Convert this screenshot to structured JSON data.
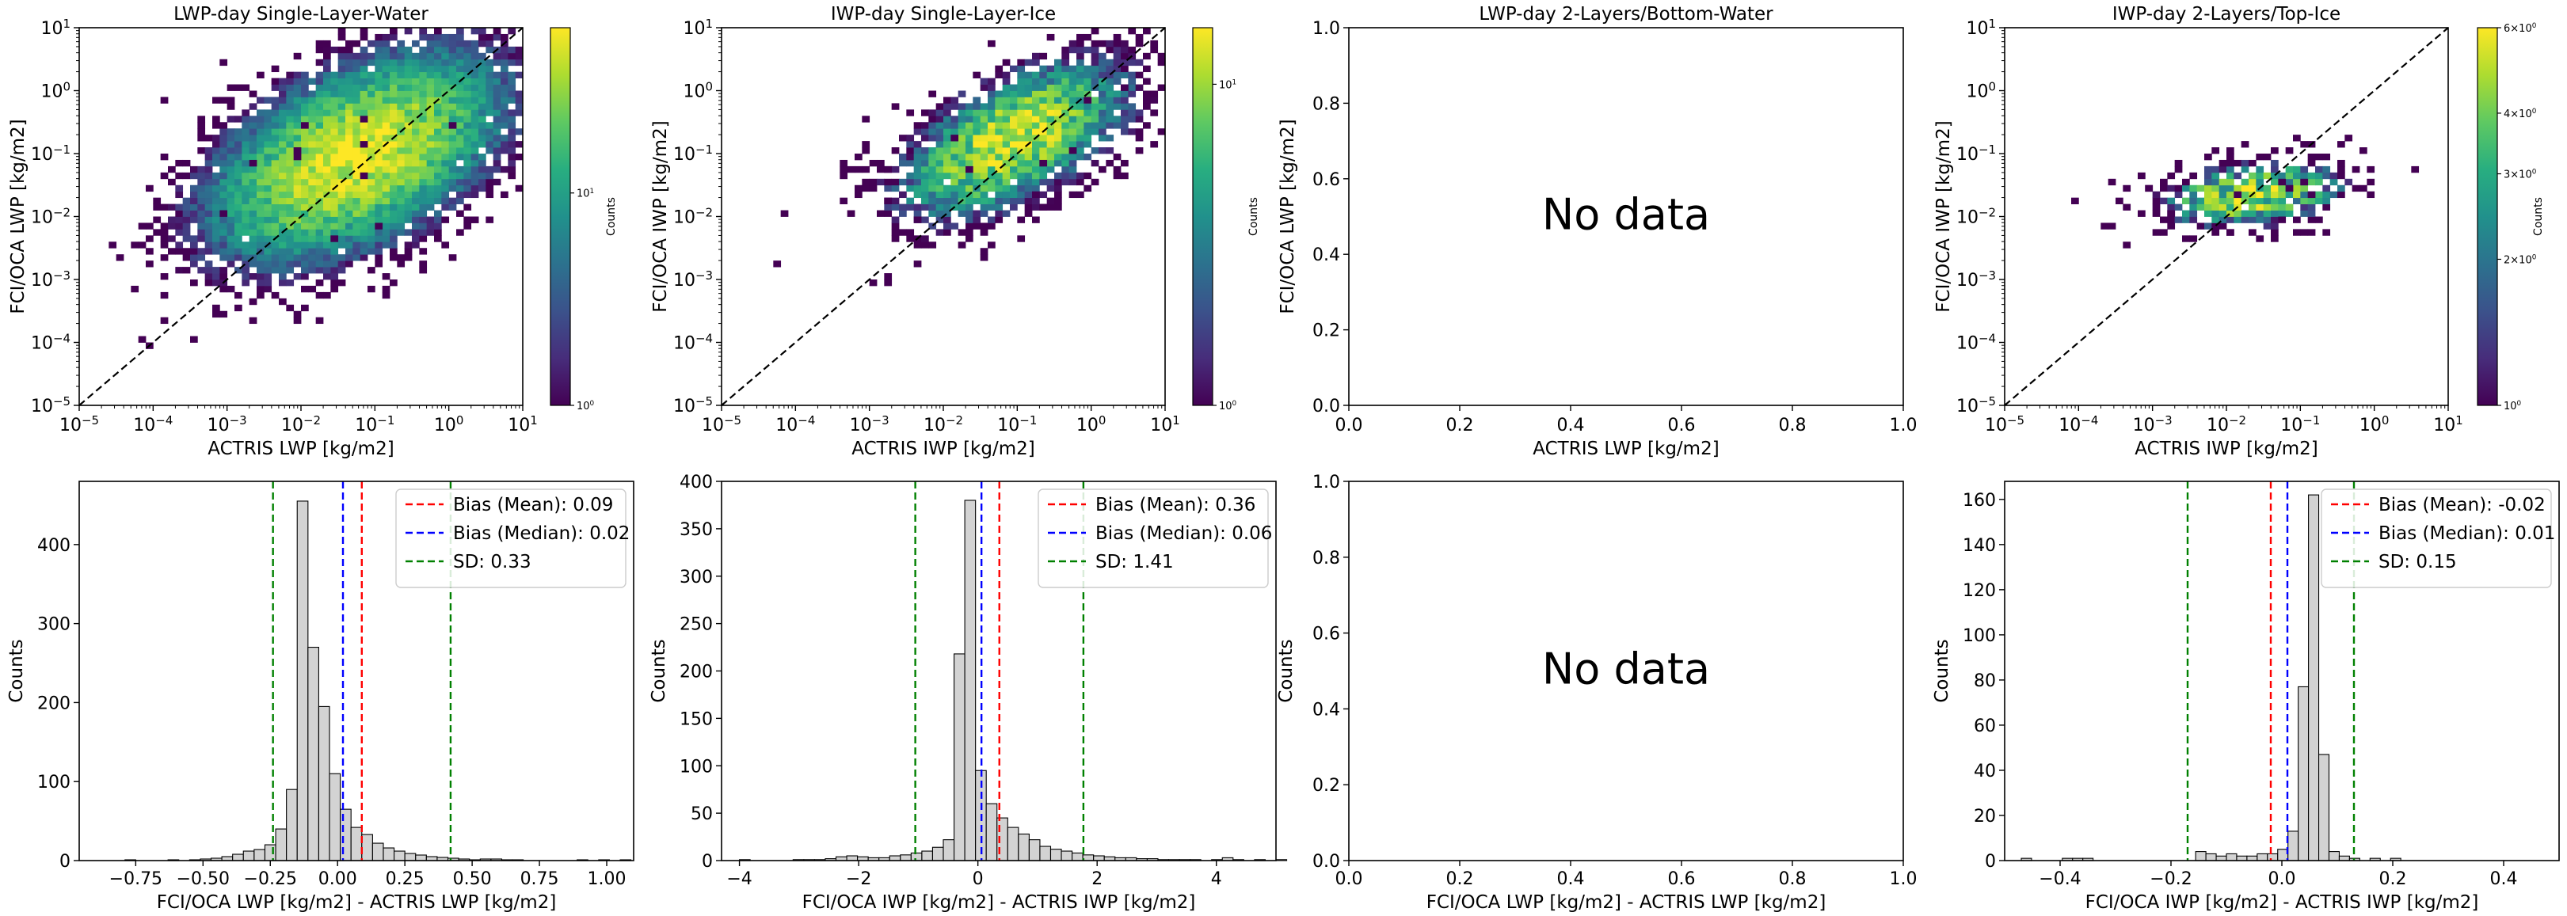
{
  "colorbar_label": "Counts",
  "no_data_text": "No data",
  "chart_data": [
    {
      "type": "heatmap",
      "title": "LWP-day Single-Layer-Water",
      "xlabel": "ACTRIS LWP [kg/m2]",
      "ylabel": "FCI/OCA LWP [kg/m2]",
      "xscale": "log",
      "yscale": "log",
      "xlim": [
        1e-05,
        10
      ],
      "ylim": [
        1e-05,
        10
      ],
      "xticks": [
        "10^-5",
        "10^-4",
        "10^-3",
        "10^-2",
        "10^-1",
        "10^0",
        "10^1"
      ],
      "yticks": [
        "10^-5",
        "10^-4",
        "10^-3",
        "10^-2",
        "10^-1",
        "10^0",
        "10^1"
      ],
      "one_to_one_line": true,
      "colormap": "viridis",
      "colorbar": {
        "label": "Counts",
        "scale": "log",
        "min": 1,
        "max": 60,
        "ticks": [
          "10^0",
          "10^1"
        ]
      },
      "density": {
        "center_x": 0.05,
        "center_y": 0.08,
        "spread_x_decades": 0.9,
        "spread_y_decades": 0.75,
        "correlation": 0.5,
        "peak_count": 60
      }
    },
    {
      "type": "heatmap",
      "title": "IWP-day Single-Layer-Ice",
      "xlabel": "ACTRIS IWP [kg/m2]",
      "ylabel": "FCI/OCA IWP [kg/m2]",
      "xscale": "log",
      "yscale": "log",
      "xlim": [
        1e-05,
        10
      ],
      "ylim": [
        1e-05,
        10
      ],
      "xticks": [
        "10^-5",
        "10^-4",
        "10^-3",
        "10^-2",
        "10^-1",
        "10^0",
        "10^1"
      ],
      "yticks": [
        "10^-5",
        "10^-4",
        "10^-3",
        "10^-2",
        "10^-1",
        "10^0",
        "10^1"
      ],
      "one_to_one_line": true,
      "colormap": "viridis",
      "colorbar": {
        "label": "Counts",
        "scale": "log",
        "min": 1,
        "max": 15,
        "ticks": [
          "10^0",
          "10^1"
        ]
      },
      "density": {
        "center_x": 0.08,
        "center_y": 0.15,
        "spread_x_decades": 0.8,
        "spread_y_decades": 0.65,
        "correlation": 0.6,
        "peak_count": 15
      }
    },
    {
      "type": "heatmap",
      "title": "LWP-day 2-Layers/Bottom-Water",
      "xlabel": "ACTRIS LWP [kg/m2]",
      "ylabel": "FCI/OCA LWP [kg/m2]",
      "xlim": [
        0,
        1
      ],
      "ylim": [
        0,
        1
      ],
      "xticks": [
        "0.0",
        "0.2",
        "0.4",
        "0.6",
        "0.8",
        "1.0"
      ],
      "yticks": [
        "0.0",
        "0.2",
        "0.4",
        "0.6",
        "0.8",
        "1.0"
      ],
      "annotation": "No data"
    },
    {
      "type": "heatmap",
      "title": "IWP-day 2-Layers/Top-Ice",
      "xlabel": "ACTRIS IWP [kg/m2]",
      "ylabel": "FCI/OCA IWP [kg/m2]",
      "xscale": "log",
      "yscale": "log",
      "xlim": [
        1e-05,
        10
      ],
      "ylim": [
        1e-05,
        10
      ],
      "xticks": [
        "10^-5",
        "10^-4",
        "10^-3",
        "10^-2",
        "10^-1",
        "10^0",
        "10^1"
      ],
      "yticks": [
        "10^-5",
        "10^-4",
        "10^-3",
        "10^-2",
        "10^-1",
        "10^0",
        "10^1"
      ],
      "one_to_one_line": true,
      "colormap": "viridis",
      "colorbar": {
        "label": "Counts",
        "scale": "log",
        "min": 1,
        "max": 6,
        "ticks": [
          "10^0",
          "2×10^0",
          "3×10^0",
          "4×10^0",
          "6×10^0"
        ]
      },
      "density": {
        "center_x": 0.02,
        "center_y": 0.02,
        "spread_x_decades": 0.75,
        "spread_y_decades": 0.3,
        "correlation": 0.3,
        "peak_count": 6
      }
    },
    {
      "type": "bar",
      "xlabel": "FCI/OCA LWP [kg/m2] - ACTRIS LWP [kg/m2]",
      "ylabel": "Counts",
      "xlim": [
        -0.96,
        1.1
      ],
      "ylim": [
        0,
        480
      ],
      "xticks": [
        -0.75,
        -0.5,
        -0.25,
        0.0,
        0.25,
        0.5,
        0.75,
        1.0
      ],
      "xtick_labels": [
        "−0.75",
        "−0.50",
        "−0.25",
        "0.00",
        "0.25",
        "0.50",
        "0.75",
        "1.00"
      ],
      "yticks": [
        0,
        100,
        200,
        300,
        400
      ],
      "bin_edges_start": -0.95,
      "bin_width": 0.04,
      "values": [
        0,
        0,
        0,
        0,
        1,
        0,
        0,
        0,
        1,
        0,
        1,
        2,
        3,
        5,
        8,
        12,
        14,
        20,
        40,
        90,
        455,
        270,
        195,
        110,
        65,
        42,
        33,
        22,
        16,
        12,
        9,
        7,
        5,
        4,
        3,
        2,
        1,
        2,
        2,
        1,
        1,
        0,
        0,
        0,
        0,
        0,
        1,
        0,
        1,
        0,
        1
      ],
      "vlines": [
        {
          "name": "Bias (Mean)",
          "label": "Bias (Mean): 0.09",
          "x": 0.09,
          "color": "#ff0000"
        },
        {
          "name": "Bias (Median)",
          "label": "Bias (Median): 0.02",
          "x": 0.02,
          "color": "#0000ff"
        },
        {
          "name": "SD",
          "label": "SD: 0.33",
          "x": -0.24,
          "x2": 0.42,
          "color": "#008000"
        }
      ],
      "legend_position": "upper right"
    },
    {
      "type": "bar",
      "xlabel": "FCI/OCA IWP [kg/m2] - ACTRIS IWP [kg/m2]",
      "ylabel": "Counts",
      "xlim": [
        -4.3,
        5.0
      ],
      "ylim": [
        0,
        400
      ],
      "xticks": [
        -4,
        -2,
        0,
        2,
        4
      ],
      "xtick_labels": [
        "−4",
        "−2",
        "0",
        "2",
        "4"
      ],
      "yticks": [
        0,
        50,
        100,
        150,
        200,
        250,
        300,
        350,
        400
      ],
      "bin_edges_start": -4.0,
      "bin_width": 0.18,
      "values": [
        1,
        0,
        0,
        0,
        0,
        1,
        1,
        1,
        2,
        4,
        5,
        4,
        3,
        3,
        5,
        6,
        8,
        10,
        14,
        22,
        218,
        380,
        95,
        60,
        45,
        35,
        28,
        22,
        15,
        12,
        10,
        8,
        6,
        5,
        4,
        3,
        3,
        2,
        2,
        1,
        1,
        1,
        1,
        0,
        1,
        3,
        1,
        0,
        1,
        0,
        1
      ],
      "vlines": [
        {
          "name": "Bias (Mean)",
          "label": "Bias (Mean): 0.36",
          "x": 0.36,
          "color": "#ff0000"
        },
        {
          "name": "Bias (Median)",
          "label": "Bias (Median): 0.06",
          "x": 0.06,
          "color": "#0000ff"
        },
        {
          "name": "SD",
          "label": "SD: 1.41",
          "x": -1.05,
          "x2": 1.77,
          "color": "#008000"
        }
      ],
      "legend_position": "upper right"
    },
    {
      "type": "bar",
      "xlabel": "FCI/OCA LWP [kg/m2] - ACTRIS LWP [kg/m2]",
      "ylabel": "Counts",
      "xlim": [
        0,
        1
      ],
      "ylim": [
        0,
        1
      ],
      "xticks": [
        0.0,
        0.2,
        0.4,
        0.6,
        0.8,
        1.0
      ],
      "xtick_labels": [
        "0.0",
        "0.2",
        "0.4",
        "0.6",
        "0.8",
        "1.0"
      ],
      "yticks": [
        0.0,
        0.2,
        0.4,
        0.6,
        0.8,
        1.0
      ],
      "ytick_labels": [
        "0.0",
        "0.2",
        "0.4",
        "0.6",
        "0.8",
        "1.0"
      ],
      "values": [],
      "annotation": "No data"
    },
    {
      "type": "bar",
      "xlabel": "FCI/OCA IWP [kg/m2] - ACTRIS IWP [kg/m2]",
      "ylabel": "Counts",
      "xlim": [
        -0.5,
        0.5
      ],
      "ylim": [
        0,
        168
      ],
      "xticks": [
        -0.4,
        -0.2,
        0.0,
        0.2,
        0.4
      ],
      "xtick_labels": [
        "−0.4",
        "−0.2",
        "0.0",
        "0.2",
        "0.4"
      ],
      "yticks": [
        0,
        20,
        40,
        60,
        80,
        100,
        120,
        140,
        160
      ],
      "bin_edges_start": -0.47,
      "bin_width": 0.0185,
      "values": [
        1,
        0,
        0,
        0,
        1,
        1,
        1,
        0,
        0,
        0,
        0,
        0,
        0,
        0,
        0,
        0,
        0,
        4,
        3,
        2,
        3,
        2,
        2,
        3,
        3,
        5,
        13,
        77,
        162,
        47,
        4,
        2,
        1,
        0,
        1,
        0,
        1,
        0,
        0,
        0,
        0,
        0,
        0,
        0,
        0,
        0,
        0,
        0,
        0,
        0,
        0
      ],
      "vlines": [
        {
          "name": "Bias (Mean)",
          "label": "Bias (Mean): -0.02",
          "x": -0.02,
          "color": "#ff0000"
        },
        {
          "name": "Bias (Median)",
          "label": "Bias (Median): 0.01",
          "x": 0.01,
          "color": "#0000ff"
        },
        {
          "name": "SD",
          "label": "SD: 0.15",
          "x": -0.17,
          "x2": 0.13,
          "color": "#008000"
        }
      ],
      "legend_position": "upper right"
    }
  ]
}
